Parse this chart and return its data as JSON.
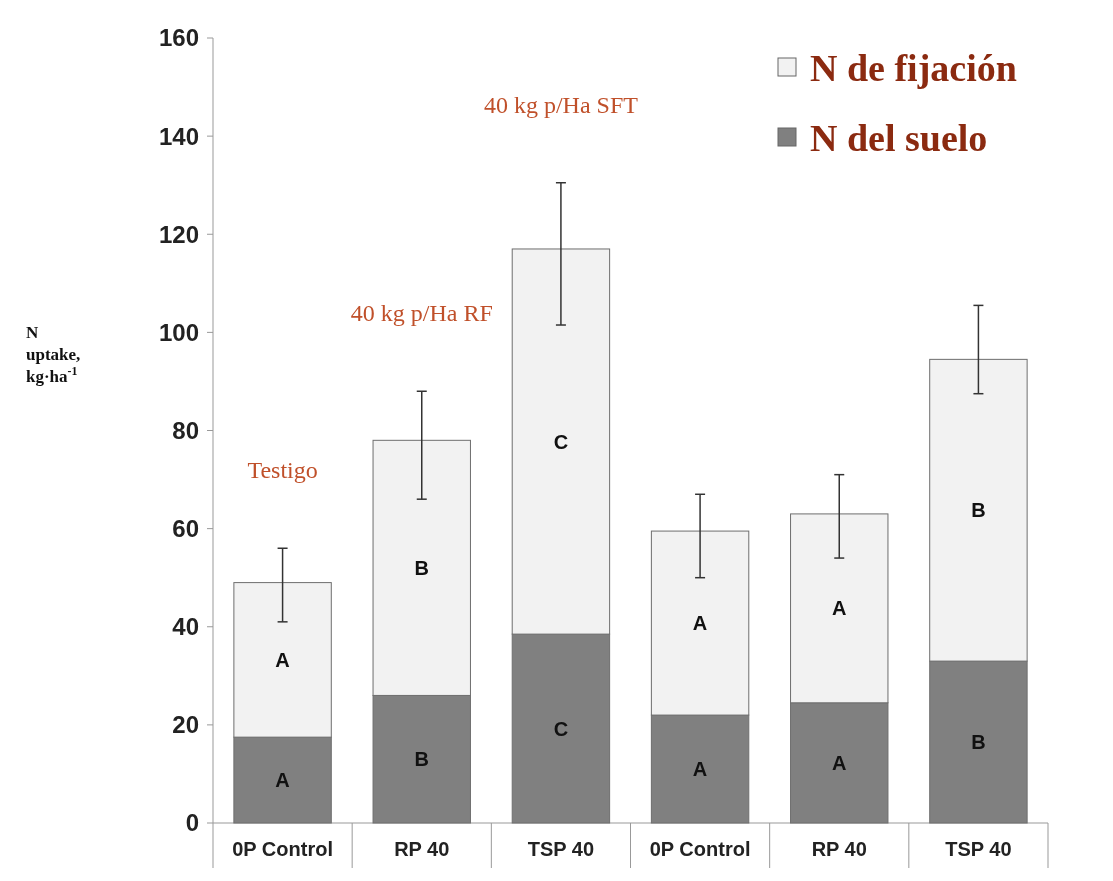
{
  "chart_data": {
    "type": "bar",
    "stacked": true,
    "ylabel": "N uptake, kg·ha$^{-1}$",
    "categories": [
      "0P Control",
      "RP 40",
      "TSP 40",
      "0P Control",
      "RP 40",
      "TSP 40"
    ],
    "series": [
      {
        "name": "N del suelo",
        "color": "#808080",
        "values": [
          17.5,
          26,
          38.5,
          22,
          24.5,
          33
        ],
        "value_labels": [
          "A",
          "B",
          "C",
          "A",
          "A",
          "B"
        ]
      },
      {
        "name": "N de fijación",
        "color": "#f2f2f2",
        "values": [
          31.5,
          52,
          78.5,
          37.5,
          38.5,
          61.5
        ],
        "value_labels": [
          "A",
          "B",
          "C",
          "A",
          "A",
          "B"
        ],
        "errors": [
          [
            41,
            56
          ],
          [
            66,
            88
          ],
          [
            101.5,
            130.5
          ],
          [
            50,
            67
          ],
          [
            54,
            71
          ],
          [
            87.5,
            105.5
          ]
        ]
      }
    ],
    "ylim": [
      0,
      160
    ],
    "yticks": [
      0,
      20,
      40,
      60,
      80,
      100,
      120,
      140,
      160
    ],
    "grid": false,
    "legend": "top right",
    "annotations": [
      "Testigo",
      "40 kg p/Ha RF",
      "40 kg p/Ha SFT"
    ]
  }
}
